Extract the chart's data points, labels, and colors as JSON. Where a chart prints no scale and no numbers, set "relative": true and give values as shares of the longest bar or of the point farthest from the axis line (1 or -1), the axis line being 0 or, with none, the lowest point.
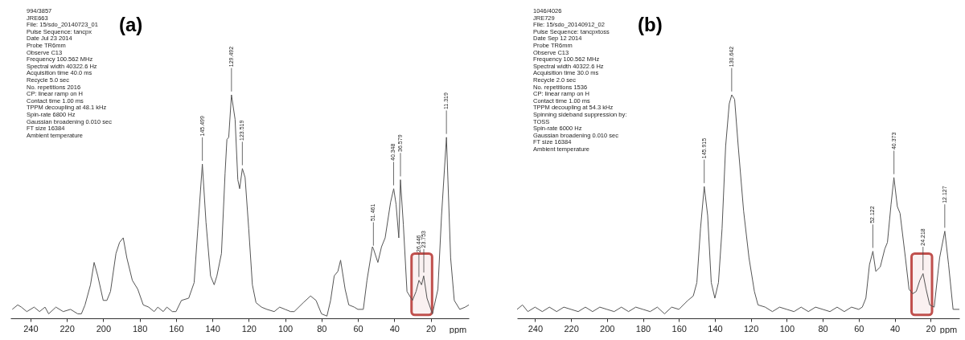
{
  "chart_data": [
    {
      "type": "line",
      "relative": true,
      "xlabel": "ppm",
      "color": "#555555",
      "line_style": "solid",
      "marker": "none",
      "xlim": [
        251,
        -1
      ],
      "xticks": [
        240,
        220,
        200,
        180,
        160,
        140,
        120,
        100,
        80,
        60,
        40,
        20
      ],
      "x": [
        250,
        247,
        245,
        242,
        238,
        235,
        232,
        230,
        226,
        222,
        218,
        214,
        212,
        210,
        207,
        205,
        203,
        200,
        198,
        196,
        193,
        191,
        189,
        187,
        184,
        181,
        178,
        175,
        172,
        170,
        167,
        165,
        162,
        160,
        157,
        153,
        150,
        148,
        145.5,
        143.5,
        141,
        139,
        137.5,
        135,
        133,
        132,
        131,
        129.5,
        127.5,
        126,
        125,
        123.5,
        122,
        120,
        118,
        116,
        113,
        110,
        106,
        103,
        100,
        97,
        95,
        90,
        86,
        83,
        80,
        77,
        75,
        73,
        71,
        69.5,
        67,
        65,
        62,
        60,
        57,
        55,
        52,
        51.4,
        49,
        47,
        45,
        42,
        40.3,
        39,
        37.5,
        36.6,
        35,
        33,
        30,
        28,
        26.4,
        25,
        23.8,
        22,
        19,
        16,
        14,
        11.3,
        9,
        7,
        4,
        1,
        -1
      ],
      "values": [
        0.04,
        0.06,
        0.05,
        0.03,
        0.05,
        0.03,
        0.05,
        0.02,
        0.05,
        0.03,
        0.04,
        0.02,
        0.02,
        0.06,
        0.15,
        0.25,
        0.19,
        0.08,
        0.08,
        0.12,
        0.29,
        0.34,
        0.36,
        0.27,
        0.17,
        0.13,
        0.06,
        0.05,
        0.03,
        0.05,
        0.03,
        0.05,
        0.03,
        0.03,
        0.08,
        0.09,
        0.16,
        0.4,
        0.69,
        0.43,
        0.19,
        0.15,
        0.19,
        0.29,
        0.65,
        0.8,
        0.81,
        1.0,
        0.89,
        0.62,
        0.58,
        0.67,
        0.63,
        0.4,
        0.15,
        0.07,
        0.05,
        0.04,
        0.03,
        0.05,
        0.04,
        0.03,
        0.03,
        0.07,
        0.1,
        0.08,
        0.02,
        0.01,
        0.08,
        0.19,
        0.21,
        0.26,
        0.13,
        0.06,
        0.05,
        0.04,
        0.04,
        0.17,
        0.32,
        0.31,
        0.25,
        0.32,
        0.36,
        0.52,
        0.58,
        0.51,
        0.36,
        0.62,
        0.42,
        0.12,
        0.08,
        0.12,
        0.17,
        0.15,
        0.19,
        0.09,
        0.02,
        0.13,
        0.46,
        0.81,
        0.27,
        0.08,
        0.04,
        0.05,
        0.06
      ],
      "bands": [
        {
          "axis": "x",
          "from": 30.5,
          "to": 19.2,
          "color": "#c0504d"
        }
      ],
      "annotations": [
        "(a)",
        "994/3857\nJRE663\n\nFile: 15/sdo_20140723_01\n\nPulse Sequence: tancpx\n\nDate  Jul 23 2014\nProbe  TR6mm\n\nObserve C13\nFrequency 100.562 MHz\nSpectral width 40322.6 Hz\nAcquisition time 40.0 ms\nRecycle 5.0 sec\nNo. repetitions 2016\n\nCP: linear ramp on H\nContact time 1.00 ms\nTPPM decoupling at 48.1 kHz\nSpin-rate 6800 Hz\n\nGaussian broadening 0.010 sec\nFT size 16384\nAmbient temperature",
        {
          "text": "145.499",
          "x": 145.499,
          "y": 0.69
        },
        {
          "text": "129.492",
          "x": 129.492,
          "y": 1.0
        },
        {
          "text": "123.519",
          "x": 123.519,
          "y": 0.67
        },
        {
          "text": "51.461",
          "x": 51.461,
          "y": 0.31
        },
        {
          "text": "40.348",
          "x": 40.348,
          "y": 0.58
        },
        {
          "text": "36.579",
          "x": 36.579,
          "y": 0.62
        },
        {
          "text": "26.446",
          "x": 26.446,
          "y": 0.17
        },
        {
          "text": "23.753",
          "x": 23.753,
          "y": 0.19
        },
        {
          "text": "11.319",
          "x": 11.319,
          "y": 0.81
        }
      ]
    },
    {
      "type": "line",
      "relative": true,
      "xlabel": "ppm",
      "color": "#555555",
      "line_style": "solid",
      "marker": "none",
      "xlim": [
        250,
        4
      ],
      "xticks": [
        240,
        220,
        200,
        180,
        160,
        140,
        120,
        100,
        80,
        60,
        40,
        20
      ],
      "x": [
        250,
        247,
        244,
        240,
        236,
        232,
        228,
        224,
        220,
        216,
        212,
        208,
        204,
        200,
        196,
        192,
        188,
        184,
        180,
        176,
        172,
        168,
        164,
        160,
        155,
        152,
        150,
        148,
        145.9,
        144,
        142,
        140,
        138,
        136,
        134,
        132,
        130.6,
        129,
        127,
        124,
        121,
        118,
        116,
        112,
        108,
        104,
        100,
        96,
        92,
        88,
        84,
        80,
        76,
        72,
        68,
        64,
        60,
        58,
        56,
        54,
        52.1,
        50.5,
        48,
        45.5,
        44,
        42,
        40.4,
        38.5,
        37,
        34,
        32,
        30,
        28,
        26,
        24.2,
        22.5,
        20.5,
        18,
        15,
        12.1,
        10,
        7.5,
        4
      ],
      "values": [
        0.04,
        0.06,
        0.03,
        0.05,
        0.03,
        0.05,
        0.03,
        0.05,
        0.04,
        0.03,
        0.05,
        0.03,
        0.05,
        0.04,
        0.03,
        0.05,
        0.03,
        0.05,
        0.04,
        0.03,
        0.05,
        0.02,
        0.05,
        0.04,
        0.08,
        0.1,
        0.16,
        0.4,
        0.59,
        0.46,
        0.16,
        0.09,
        0.16,
        0.4,
        0.77,
        0.96,
        1.0,
        0.98,
        0.77,
        0.48,
        0.27,
        0.12,
        0.06,
        0.05,
        0.03,
        0.05,
        0.04,
        0.03,
        0.05,
        0.03,
        0.05,
        0.04,
        0.03,
        0.05,
        0.03,
        0.05,
        0.04,
        0.05,
        0.09,
        0.24,
        0.3,
        0.21,
        0.23,
        0.31,
        0.34,
        0.51,
        0.63,
        0.5,
        0.47,
        0.27,
        0.13,
        0.11,
        0.12,
        0.17,
        0.2,
        0.13,
        0.06,
        0.05,
        0.27,
        0.39,
        0.24,
        0.04,
        0.04
      ],
      "bands": [
        {
          "axis": "x",
          "from": 30.6,
          "to": 19.2,
          "color": "#c0504d"
        }
      ],
      "annotations": [
        "(b)",
        "1046/4026\nJRE729\n\nFile: 15/sdo_20140912_02\n\nPulse Sequence: tancpxtoss\n\nDate  Sep 12 2014\nProbe  TR6mm\n\nObserve C13\nFrequency 100.562 MHz\nSpectral width 40322.6 Hz\nAcquisition time 30.0 ms\nRecycle 2.0 sec\nNo. repetitions 1536\n\nCP: linear ramp on H\nContact time 1.00 ms\nTPPM decoupling at 54.3 kHz\n\nSpinning sideband suppression by:\n   TOSS\nSpin-rate 6000 Hz\n\nGaussian broadening 0.010 sec\nFT size 16384\nAmbient temperature",
        {
          "text": "145.915",
          "x": 145.915,
          "y": 0.59
        },
        {
          "text": "130.642",
          "x": 130.642,
          "y": 1.0
        },
        {
          "text": "52.122",
          "x": 52.122,
          "y": 0.3
        },
        {
          "text": "40.373",
          "x": 40.373,
          "y": 0.63
        },
        {
          "text": "24.218",
          "x": 24.218,
          "y": 0.2
        },
        {
          "text": "12.127",
          "x": 12.127,
          "y": 0.39
        }
      ]
    }
  ]
}
